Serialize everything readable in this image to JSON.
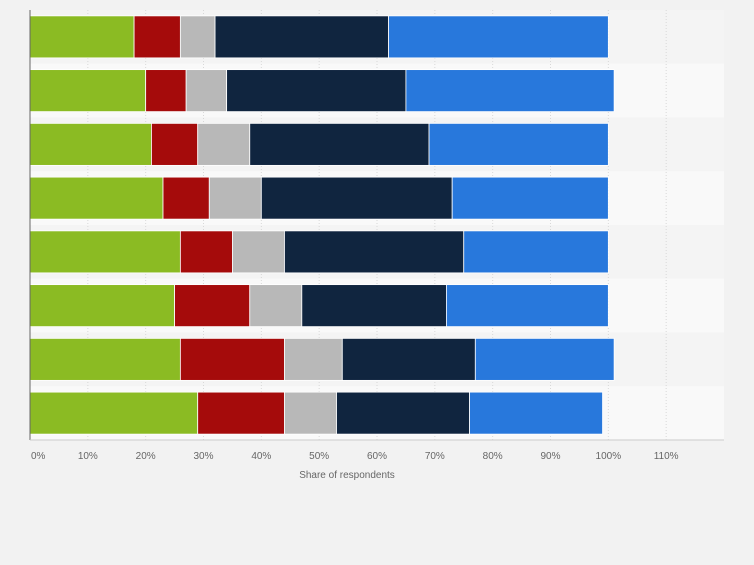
{
  "chart_data": {
    "type": "bar",
    "orientation": "horizontal",
    "stacked": true,
    "xlabel": "Share of respondents",
    "xlim": [
      0,
      120
    ],
    "x_ticks": [
      "0%",
      "10%",
      "20%",
      "30%",
      "40%",
      "50%",
      "60%",
      "70%",
      "80%",
      "90%",
      "100%",
      "110%"
    ],
    "grid": true,
    "legend": "none",
    "categories": [
      "",
      "",
      "",
      "",
      "",
      "",
      "",
      ""
    ],
    "series": [
      {
        "color": "#8bbb23",
        "values": [
          18,
          20,
          21,
          23,
          26,
          25,
          26,
          29
        ]
      },
      {
        "color": "#a50b0b",
        "values": [
          8,
          7,
          8,
          8,
          9,
          13,
          18,
          15
        ]
      },
      {
        "color": "#b8b8b8",
        "values": [
          6,
          7,
          9,
          9,
          9,
          9,
          10,
          9
        ]
      },
      {
        "color": "#10253f",
        "values": [
          30,
          31,
          31,
          33,
          31,
          25,
          23,
          23
        ]
      },
      {
        "color": "#2878dc",
        "values": [
          38,
          36,
          31,
          27,
          25,
          28,
          24,
          23
        ]
      }
    ]
  }
}
